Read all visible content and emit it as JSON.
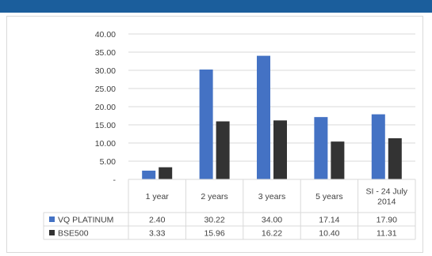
{
  "chart_data": {
    "type": "bar",
    "categories": [
      "1 year",
      "2 years",
      "3 years",
      "5 years",
      "SI - 24 July 2014"
    ],
    "category_lines": [
      [
        "1 year"
      ],
      [
        "2 years"
      ],
      [
        "3 years"
      ],
      [
        "5 years"
      ],
      [
        "SI - 24 July",
        "2014"
      ]
    ],
    "series": [
      {
        "name": "VQ PLATINUM",
        "values": [
          2.4,
          30.22,
          34.0,
          17.14,
          17.9
        ],
        "labels": [
          "2.40",
          "30.22",
          "34.00",
          "17.14",
          "17.90"
        ],
        "color": "#4472c4"
      },
      {
        "name": "BSE500",
        "values": [
          3.33,
          15.96,
          16.22,
          10.4,
          11.31
        ],
        "labels": [
          "3.33",
          "15.96",
          "16.22",
          "10.40",
          "11.31"
        ],
        "color": "#333333"
      }
    ],
    "y_ticks": [
      "-",
      "5.00",
      "10.00",
      "15.00",
      "20.00",
      "25.00",
      "30.00",
      "35.00",
      "40.00"
    ],
    "ylim": [
      0,
      40
    ],
    "grid": true,
    "legend": "data-table"
  },
  "colors": {
    "header_bar": "#1b5e9c",
    "grid": "#d9d9d9",
    "text": "#404040"
  }
}
